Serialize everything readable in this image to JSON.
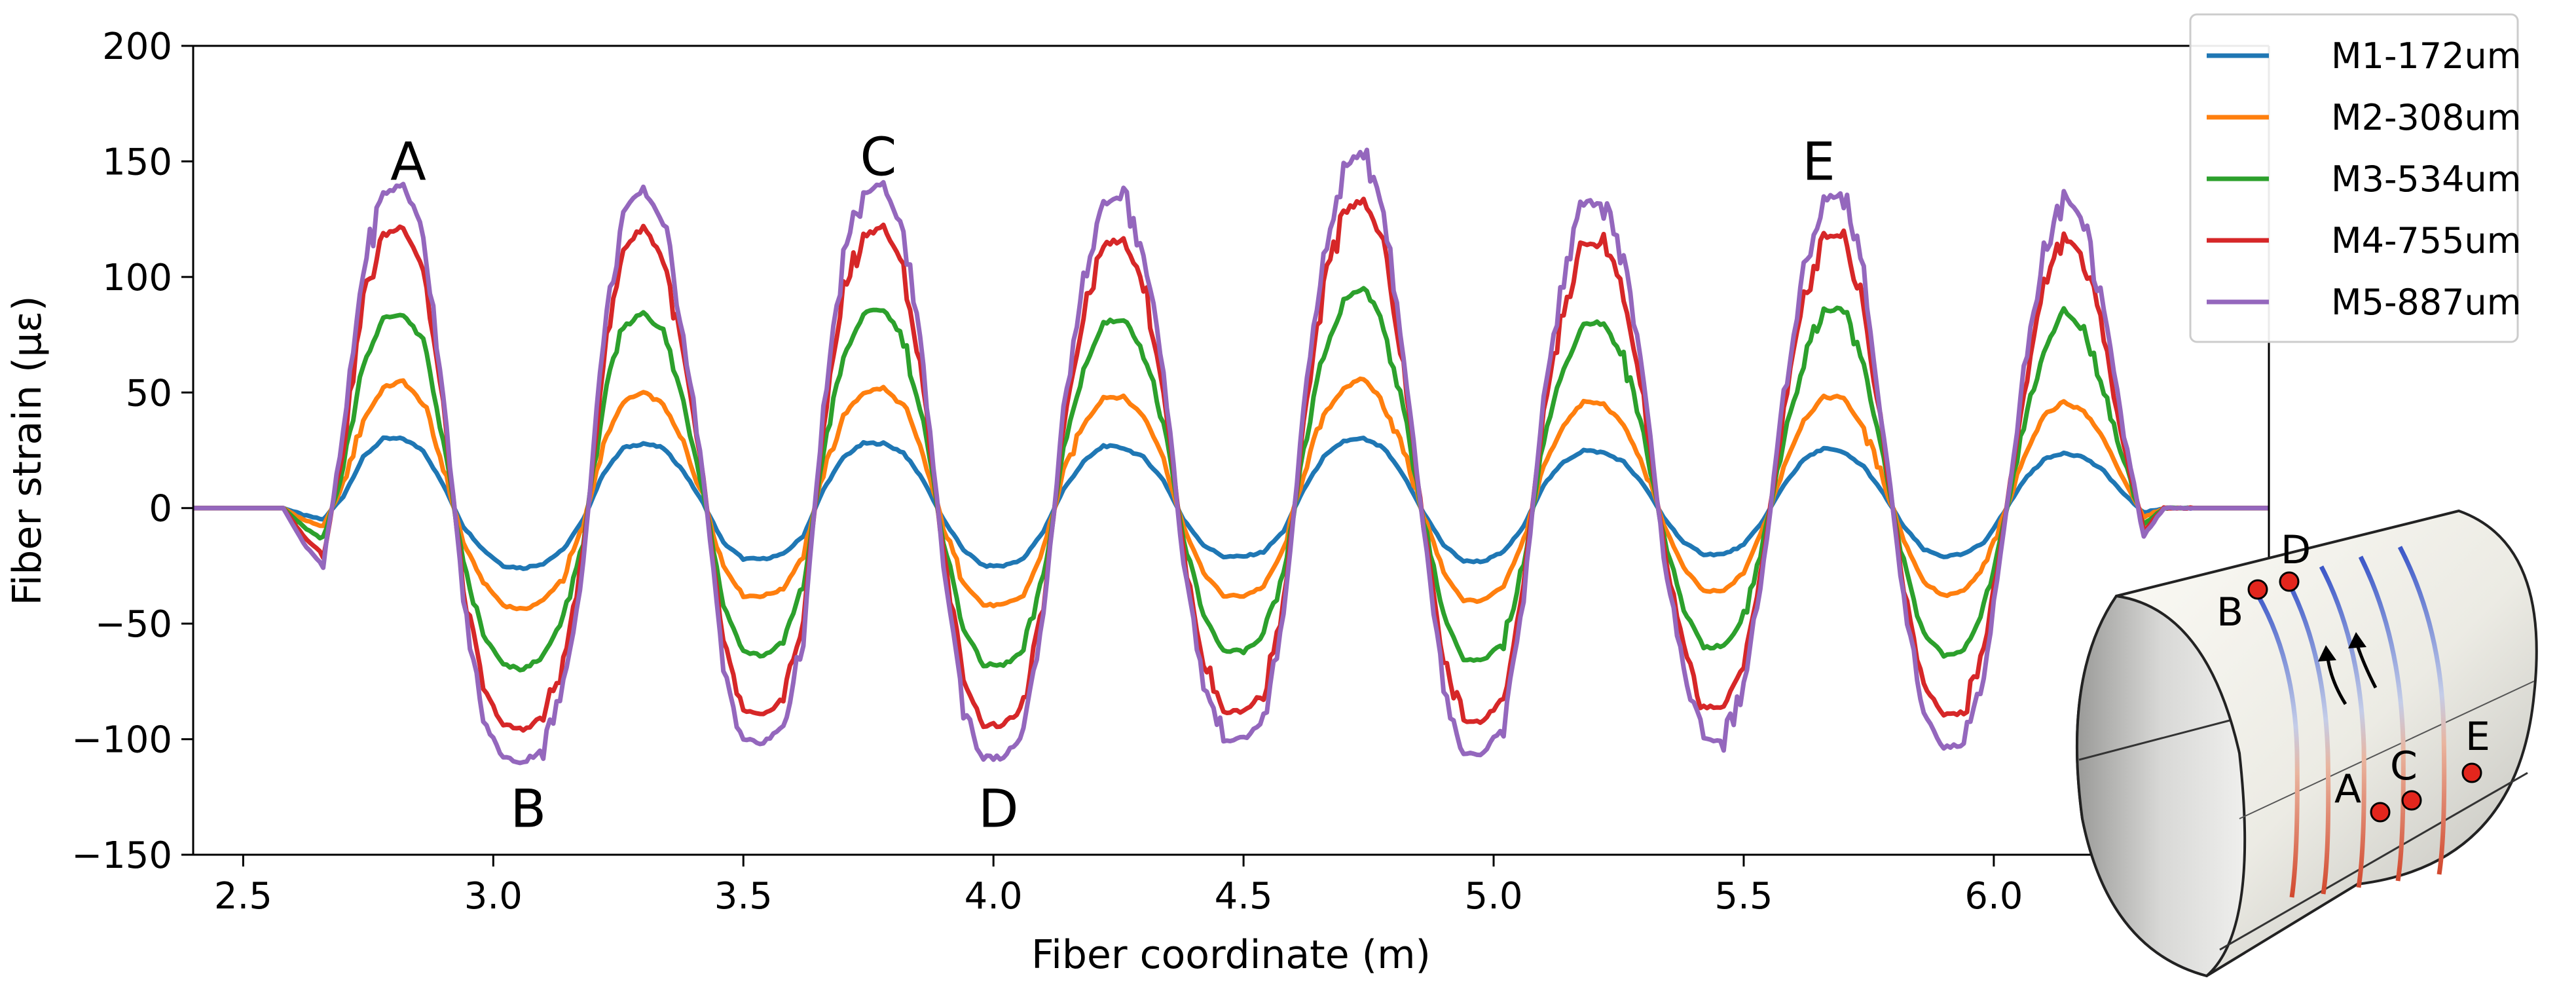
{
  "chart_data": {
    "type": "line",
    "xlabel": "Fiber coordinate (m)",
    "ylabel": "Fiber strain (με)",
    "xlim": [
      2.4,
      6.55
    ],
    "ylim": [
      -150,
      200
    ],
    "xticks": [
      "2.5",
      "3.0",
      "3.5",
      "4.0",
      "4.5",
      "5.0",
      "5.5",
      "6.0"
    ],
    "yticks": [
      "200",
      "150",
      "100",
      "50",
      "0",
      "−50",
      "−100",
      "−150"
    ],
    "legend_position": "top-right",
    "x": [
      2.4,
      2.58,
      2.62,
      2.66,
      2.7,
      2.74,
      2.78,
      2.82,
      2.86,
      2.9,
      2.94,
      2.98,
      3.02,
      3.06,
      3.1,
      3.14,
      3.18,
      3.22,
      3.26,
      3.3,
      3.34,
      3.38,
      3.42,
      3.46,
      3.5,
      3.54,
      3.58,
      3.62,
      3.66,
      3.7,
      3.74,
      3.78,
      3.82,
      3.86,
      3.9,
      3.94,
      3.98,
      4.02,
      4.06,
      4.1,
      4.14,
      4.18,
      4.22,
      4.26,
      4.3,
      4.34,
      4.38,
      4.42,
      4.46,
      4.5,
      4.54,
      4.58,
      4.62,
      4.66,
      4.7,
      4.74,
      4.78,
      4.82,
      4.86,
      4.9,
      4.94,
      4.98,
      5.02,
      5.06,
      5.1,
      5.14,
      5.18,
      5.22,
      5.26,
      5.3,
      5.34,
      5.38,
      5.42,
      5.46,
      5.5,
      5.54,
      5.58,
      5.62,
      5.66,
      5.7,
      5.74,
      5.78,
      5.82,
      5.86,
      5.9,
      5.94,
      5.98,
      6.02,
      6.06,
      6.1,
      6.14,
      6.18,
      6.22,
      6.26,
      6.3,
      6.34,
      6.38,
      6.42,
      6.55
    ],
    "series": [
      {
        "name": "M1-172um",
        "color": "#1f77b4",
        "values": [
          0,
          0,
          -3,
          -5,
          5,
          22,
          30,
          30,
          25,
          10,
          -8,
          -18,
          -25,
          -26,
          -24,
          -18,
          -5,
          15,
          26,
          28,
          26,
          16,
          2,
          -15,
          -22,
          -22,
          -20,
          -12,
          8,
          22,
          28,
          28,
          24,
          12,
          -5,
          -18,
          -25,
          -25,
          -22,
          -10,
          8,
          20,
          27,
          26,
          22,
          12,
          -5,
          -16,
          -21,
          -21,
          -19,
          -10,
          8,
          22,
          29,
          30,
          26,
          14,
          -2,
          -16,
          -23,
          -23,
          -19,
          -8,
          10,
          20,
          25,
          24,
          20,
          10,
          -4,
          -15,
          -20,
          -20,
          -16,
          -5,
          10,
          21,
          26,
          24,
          18,
          6,
          -8,
          -18,
          -21,
          -20,
          -15,
          -2,
          12,
          21,
          24,
          22,
          16,
          6,
          -2,
          0,
          0,
          0,
          0
        ]
      },
      {
        "name": "M2-308um",
        "color": "#ff7f0e",
        "values": [
          0,
          0,
          -5,
          -8,
          10,
          38,
          52,
          55,
          45,
          18,
          -15,
          -32,
          -42,
          -44,
          -40,
          -30,
          -8,
          28,
          46,
          50,
          45,
          28,
          5,
          -25,
          -38,
          -38,
          -35,
          -20,
          15,
          40,
          50,
          52,
          44,
          22,
          -8,
          -32,
          -42,
          -42,
          -38,
          -18,
          15,
          36,
          48,
          48,
          40,
          22,
          -8,
          -28,
          -38,
          -38,
          -34,
          -18,
          15,
          40,
          52,
          56,
          46,
          25,
          -3,
          -28,
          -40,
          -40,
          -34,
          -14,
          18,
          36,
          46,
          45,
          36,
          18,
          -7,
          -26,
          -36,
          -36,
          -28,
          -8,
          18,
          38,
          48,
          48,
          34,
          12,
          -14,
          -32,
          -38,
          -36,
          -26,
          -4,
          22,
          40,
          46,
          42,
          30,
          12,
          -4,
          0,
          0,
          0,
          0
        ]
      },
      {
        "name": "M3-534um",
        "color": "#2ca02c",
        "values": [
          0,
          0,
          -8,
          -14,
          18,
          62,
          82,
          84,
          72,
          30,
          -25,
          -55,
          -68,
          -70,
          -64,
          -48,
          -14,
          45,
          78,
          85,
          76,
          46,
          8,
          -42,
          -62,
          -64,
          -58,
          -34,
          25,
          65,
          84,
          86,
          74,
          36,
          -14,
          -52,
          -68,
          -68,
          -62,
          -30,
          25,
          60,
          80,
          82,
          68,
          36,
          -14,
          -46,
          -62,
          -62,
          -56,
          -30,
          25,
          66,
          90,
          96,
          80,
          42,
          -5,
          -46,
          -66,
          -66,
          -58,
          -24,
          30,
          60,
          80,
          80,
          64,
          32,
          -12,
          -44,
          -60,
          -60,
          -48,
          -14,
          30,
          64,
          86,
          86,
          62,
          20,
          -24,
          -54,
          -64,
          -62,
          -44,
          -6,
          36,
          68,
          86,
          76,
          52,
          20,
          -7,
          0,
          0,
          0,
          0
        ]
      },
      {
        "name": "M4-755um",
        "color": "#d62728",
        "values": [
          0,
          0,
          -12,
          -20,
          26,
          90,
          118,
          122,
          104,
          44,
          -35,
          -78,
          -94,
          -96,
          -90,
          -68,
          -20,
          64,
          112,
          122,
          108,
          66,
          12,
          -60,
          -88,
          -90,
          -82,
          -48,
          36,
          94,
          118,
          122,
          104,
          52,
          -20,
          -74,
          -94,
          -94,
          -86,
          -42,
          36,
          86,
          114,
          116,
          98,
          52,
          -20,
          -66,
          -88,
          -88,
          -80,
          -42,
          36,
          94,
          128,
          134,
          114,
          60,
          -8,
          -66,
          -92,
          -92,
          -82,
          -34,
          42,
          86,
          114,
          114,
          92,
          46,
          -17,
          -62,
          -86,
          -86,
          -68,
          -20,
          42,
          90,
          118,
          118,
          88,
          28,
          -34,
          -76,
          -90,
          -88,
          -62,
          -8,
          50,
          96,
          118,
          108,
          74,
          28,
          -10,
          0,
          0,
          0,
          0
        ]
      },
      {
        "name": "M5-887um",
        "color": "#9467bd",
        "values": [
          0,
          0,
          -15,
          -25,
          32,
          104,
          136,
          140,
          120,
          50,
          -40,
          -92,
          -108,
          -110,
          -104,
          -78,
          -24,
          74,
          128,
          138,
          124,
          76,
          14,
          -70,
          -100,
          -102,
          -94,
          -56,
          42,
          108,
          136,
          140,
          120,
          60,
          -24,
          -86,
          -108,
          -108,
          -98,
          -48,
          42,
          100,
          132,
          134,
          112,
          60,
          -24,
          -76,
          -100,
          -100,
          -92,
          -48,
          42,
          108,
          148,
          154,
          130,
          68,
          -10,
          -76,
          -106,
          -106,
          -94,
          -40,
          48,
          100,
          132,
          132,
          106,
          54,
          -20,
          -72,
          -100,
          -100,
          -78,
          -24,
          48,
          104,
          134,
          136,
          100,
          32,
          -40,
          -88,
          -104,
          -102,
          -72,
          -10,
          58,
          110,
          136,
          124,
          84,
          32,
          -12,
          0,
          0,
          0,
          0
        ]
      }
    ],
    "annotations": [
      {
        "label": "A",
        "x": 2.83,
        "y": 150
      },
      {
        "label": "C",
        "x": 3.77,
        "y": 152
      },
      {
        "label": "E",
        "x": 5.65,
        "y": 150
      },
      {
        "label": "B",
        "x": 3.07,
        "y": -130
      },
      {
        "label": "D",
        "x": 4.01,
        "y": -130
      }
    ]
  },
  "inset": {
    "description_labels": [
      "B",
      "D",
      "A",
      "C",
      "E"
    ]
  }
}
